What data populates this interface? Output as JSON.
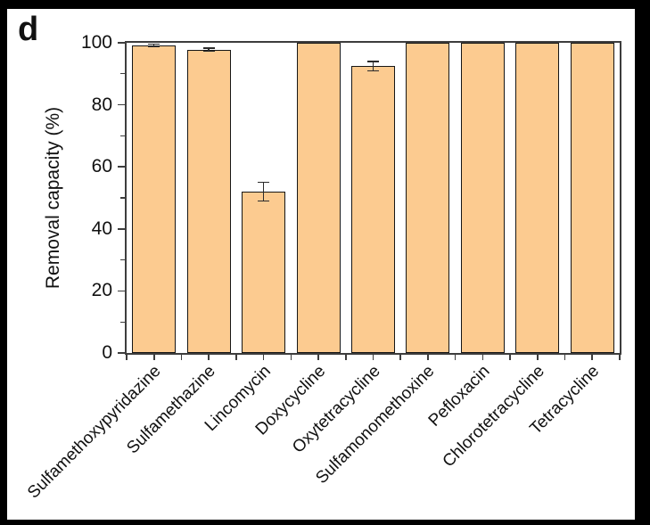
{
  "panel_label": "d",
  "chart_data": {
    "type": "bar",
    "title": "",
    "xlabel": "",
    "ylabel": "Removal capacity (%)",
    "ylim": [
      0,
      100
    ],
    "yticks": [
      0,
      20,
      40,
      60,
      80,
      100
    ],
    "minor_ytick_step": 10,
    "grid": false,
    "legend": null,
    "categories": [
      "Sulfamethoxypyridazine",
      "Sulfamethazine",
      "Lincomycin",
      "Doxycycline",
      "Oxytetracycline",
      "Sulfamonomethoxine",
      "Pefloxacin",
      "Chlorotetracycline",
      "Tetracycline"
    ],
    "values": [
      99.2,
      97.8,
      52,
      100,
      92.5,
      100,
      100,
      100,
      100
    ],
    "errors": [
      0.4,
      0.5,
      3,
      0,
      1.5,
      0,
      0,
      0,
      0
    ],
    "bar_color": "#fccb90",
    "bar_border_color": "#161616",
    "axis_color": "#3d3d3d",
    "background_color": "#ffffff",
    "frame_color": "#000000"
  }
}
